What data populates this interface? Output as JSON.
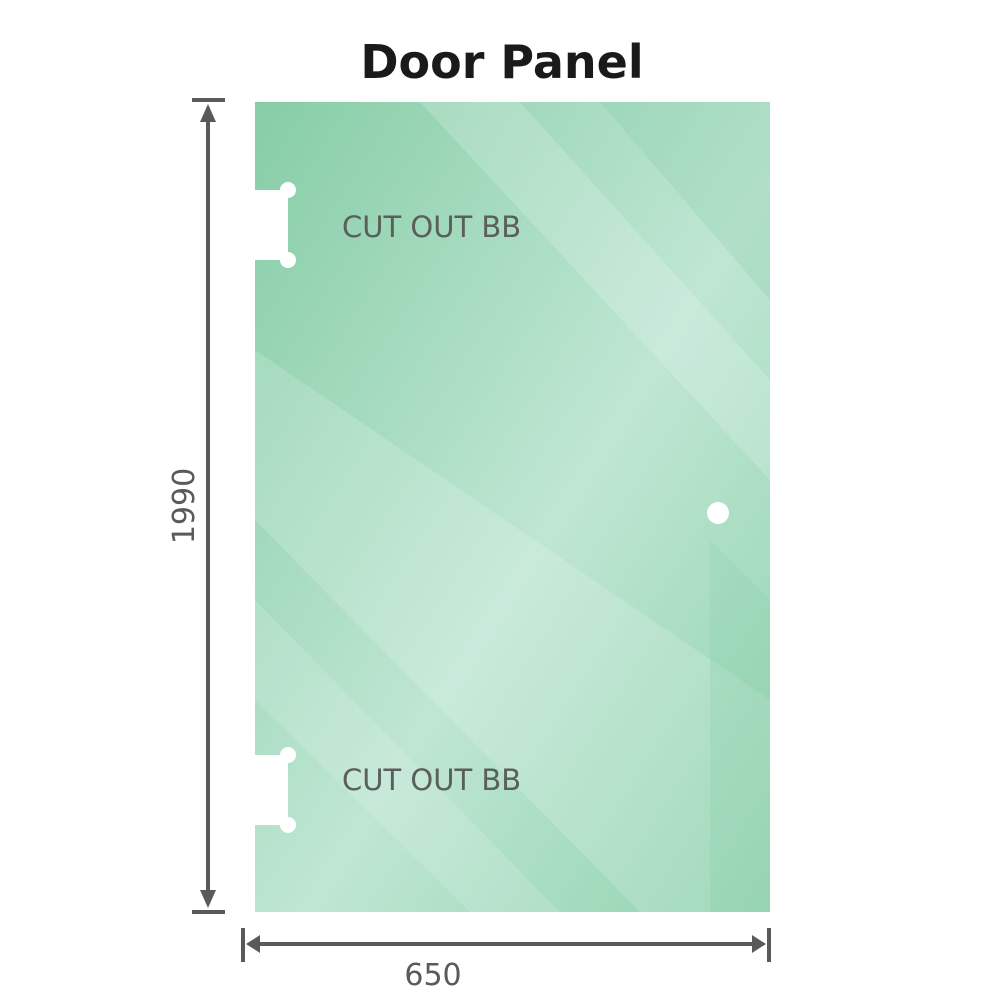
{
  "title": "Door Panel",
  "panel": {
    "color": "#8fd0ad",
    "cutouts": [
      {
        "label": "CUT OUT BB"
      },
      {
        "label": "CUT OUT BB"
      }
    ]
  },
  "dimensions": {
    "height": "1990",
    "width": "650"
  }
}
